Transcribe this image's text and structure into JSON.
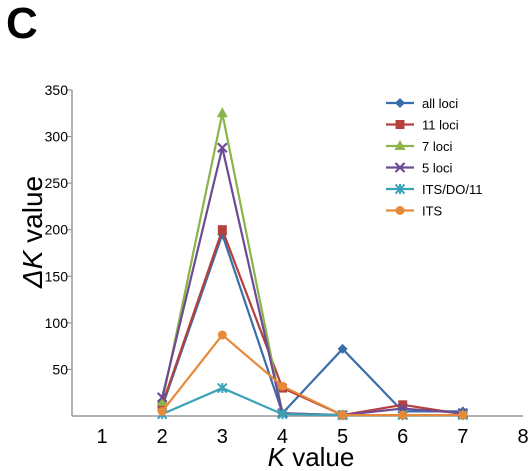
{
  "panel_label": "C",
  "chart_data": {
    "type": "line",
    "title": "",
    "xlabel_symbol": "K",
    "xlabel_text": " value",
    "ylabel_symbol": "ΔK",
    "ylabel_text": " value",
    "x_ticks": [
      1,
      2,
      3,
      4,
      5,
      6,
      7,
      8
    ],
    "y_ticks": [
      50,
      100,
      150,
      200,
      250,
      300,
      350
    ],
    "xlim": [
      0.5,
      8
    ],
    "ylim": [
      0,
      350
    ],
    "grid": false,
    "legend_position": "top-right",
    "series": [
      {
        "name": "all loci",
        "color": "#3a6ea8",
        "marker": "diamond",
        "x": [
          2,
          3,
          4,
          5,
          6,
          7
        ],
        "y": [
          10,
          195,
          3,
          72,
          5,
          5
        ]
      },
      {
        "name": "11 loci",
        "color": "#b5403c",
        "marker": "square",
        "x": [
          2,
          3,
          4,
          5,
          6,
          7
        ],
        "y": [
          12,
          200,
          30,
          1,
          12,
          2
        ]
      },
      {
        "name": "7 loci",
        "color": "#8ab34a",
        "marker": "triangle",
        "x": [
          2,
          3,
          4,
          5,
          6,
          7
        ],
        "y": [
          15,
          325,
          3,
          1,
          1,
          1
        ]
      },
      {
        "name": "5 loci",
        "color": "#6c4a94",
        "marker": "x",
        "x": [
          2,
          3,
          4,
          5,
          6,
          7
        ],
        "y": [
          20,
          288,
          3,
          1,
          8,
          3
        ]
      },
      {
        "name": "ITS/DO/11",
        "color": "#3aa3b7",
        "marker": "star",
        "x": [
          2,
          3,
          4,
          5,
          6,
          7
        ],
        "y": [
          2,
          30,
          2,
          1,
          1,
          1
        ]
      },
      {
        "name": "ITS",
        "color": "#e68a3a",
        "marker": "circle",
        "x": [
          2,
          3,
          4,
          5,
          6,
          7
        ],
        "y": [
          5,
          87,
          32,
          1,
          1,
          1
        ]
      }
    ]
  }
}
